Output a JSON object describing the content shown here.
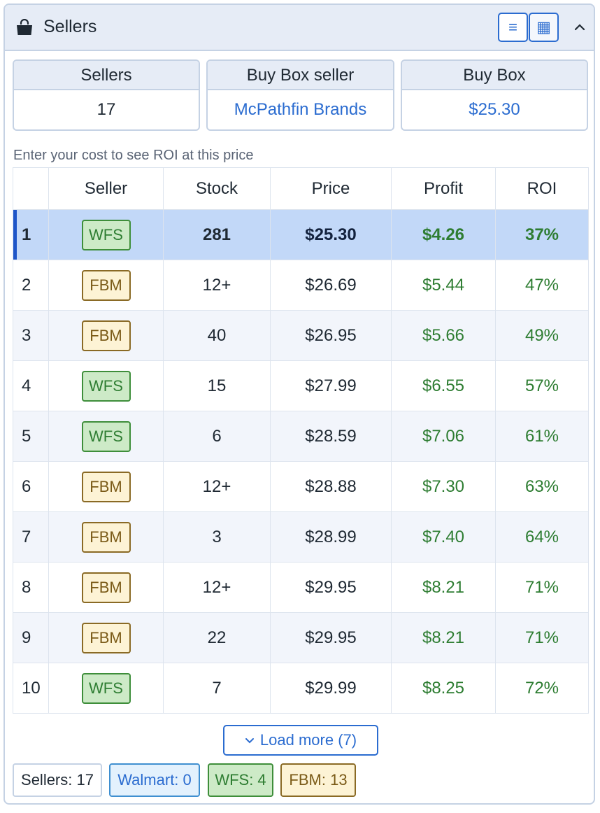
{
  "header": {
    "title": "Sellers",
    "icon": "shopping-bag-icon",
    "list_view_icon": "≡",
    "grid_view_icon": "▦"
  },
  "stats": {
    "sellers": {
      "label": "Sellers",
      "value": "17"
    },
    "buy_box_seller": {
      "label": "Buy Box seller",
      "value": "McPathfin Brands"
    },
    "buy_box": {
      "label": "Buy Box",
      "value": "$25.30"
    }
  },
  "hint": "Enter your cost to see ROI at this price",
  "table": {
    "headers": [
      "",
      "Seller",
      "Stock",
      "Price",
      "Profit",
      "ROI"
    ],
    "rows": [
      {
        "rank": "1",
        "seller": "WFS",
        "stock": "281",
        "price": "$25.30",
        "profit": "$4.26",
        "roi": "37%"
      },
      {
        "rank": "2",
        "seller": "FBM",
        "stock": "12+",
        "price": "$26.69",
        "profit": "$5.44",
        "roi": "47%"
      },
      {
        "rank": "3",
        "seller": "FBM",
        "stock": "40",
        "price": "$26.95",
        "profit": "$5.66",
        "roi": "49%"
      },
      {
        "rank": "4",
        "seller": "WFS",
        "stock": "15",
        "price": "$27.99",
        "profit": "$6.55",
        "roi": "57%"
      },
      {
        "rank": "5",
        "seller": "WFS",
        "stock": "6",
        "price": "$28.59",
        "profit": "$7.06",
        "roi": "61%"
      },
      {
        "rank": "6",
        "seller": "FBM",
        "stock": "12+",
        "price": "$28.88",
        "profit": "$7.30",
        "roi": "63%"
      },
      {
        "rank": "7",
        "seller": "FBM",
        "stock": "3",
        "price": "$28.99",
        "profit": "$7.40",
        "roi": "64%"
      },
      {
        "rank": "8",
        "seller": "FBM",
        "stock": "12+",
        "price": "$29.95",
        "profit": "$8.21",
        "roi": "71%"
      },
      {
        "rank": "9",
        "seller": "FBM",
        "stock": "22",
        "price": "$29.95",
        "profit": "$8.21",
        "roi": "71%"
      },
      {
        "rank": "10",
        "seller": "WFS",
        "stock": "7",
        "price": "$29.99",
        "profit": "$8.25",
        "roi": "72%"
      }
    ]
  },
  "load_more": "Load more (7)",
  "chips": {
    "all": "Sellers: 17",
    "walmart": "Walmart: 0",
    "wfs": "WFS: 4",
    "fbm": "FBM: 13"
  },
  "colors": {
    "accent": "#2b6cd0",
    "profit": "#2e7d32",
    "highlight_row": "#c2d8f8",
    "wfs_badge": "#cdeac7",
    "fbm_badge": "#fdf3d5"
  }
}
